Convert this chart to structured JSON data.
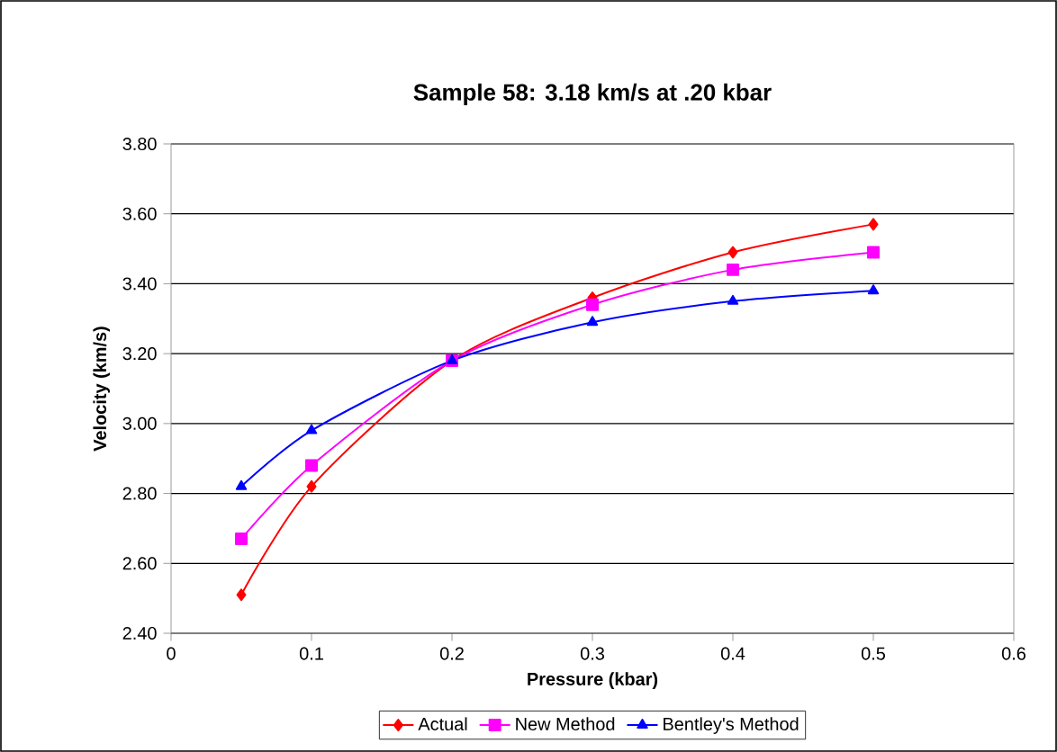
{
  "chart_data": {
    "type": "line",
    "title": "Sample 58: 3.18 km/s at .20 kbar",
    "xlabel": "Pressure (kbar)",
    "ylabel": "Velocity (km/s)",
    "x": [
      0.05,
      0.1,
      0.2,
      0.3,
      0.4,
      0.5
    ],
    "series": [
      {
        "name": "Actual",
        "color": "#ff0000",
        "marker": "diamond",
        "values": [
          2.51,
          2.82,
          3.18,
          3.36,
          3.49,
          3.57
        ]
      },
      {
        "name": "New Method",
        "color": "#ff00ff",
        "marker": "square",
        "values": [
          2.67,
          2.88,
          3.18,
          3.34,
          3.44,
          3.49
        ]
      },
      {
        "name": "Bentley's Method",
        "color": "#0000ff",
        "marker": "triangle",
        "values": [
          2.82,
          2.98,
          3.18,
          3.29,
          3.35,
          3.38
        ]
      }
    ],
    "xlim": [
      0,
      0.6
    ],
    "xticks": [
      0,
      0.1,
      0.2,
      0.3,
      0.4,
      0.5,
      0.6
    ],
    "ylim": [
      2.4,
      3.8
    ],
    "yticks": [
      {
        "value": 2.4,
        "label": "2.40"
      },
      {
        "value": 2.6,
        "label": "2.60"
      },
      {
        "value": 2.8,
        "label": "2.80"
      },
      {
        "value": 3.0,
        "label": "3.00"
      },
      {
        "value": 3.2,
        "label": "3.20"
      },
      {
        "value": 3.4,
        "label": "3.40"
      },
      {
        "value": 3.6,
        "label": "3.60"
      },
      {
        "value": 3.8,
        "label": "3.80"
      }
    ],
    "grid": "y",
    "legend": "bottom"
  }
}
